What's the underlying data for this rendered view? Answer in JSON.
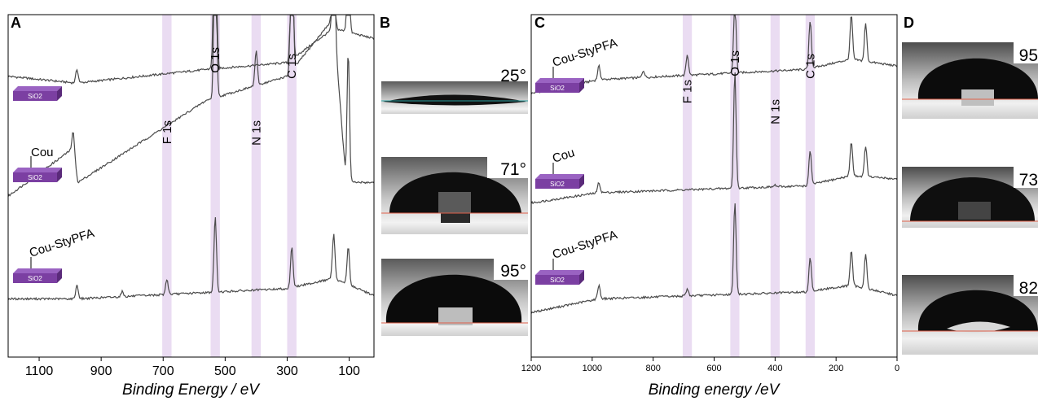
{
  "panel_letters": {
    "a": "A",
    "b": "B",
    "c": "C",
    "d": "D"
  },
  "colors": {
    "trace": "#4a4a4a",
    "band": "#eadcf2",
    "substrate": "#7b3fa2",
    "substrate_dark": "#5a2a7a",
    "baseline": "#e0604a"
  },
  "substrate_label": "SiO2",
  "chart_data": [
    {
      "panel": "A",
      "type": "line",
      "xlabel": "Binding Energy / eV",
      "xlim": [
        1200,
        20
      ],
      "x_reversed": true,
      "x_ticks": [
        "1100",
        "900",
        "700",
        "500",
        "300",
        "100"
      ],
      "x_tick_values": [
        1100,
        900,
        700,
        500,
        300,
        100
      ],
      "peak_bands": [
        {
          "label": "F 1s",
          "center": 688,
          "width": 30
        },
        {
          "label": "O 1s",
          "center": 532,
          "width": 30
        },
        {
          "label": "N 1s",
          "center": 400,
          "width": 30
        },
        {
          "label": "C 1s",
          "center": 285,
          "width": 30
        }
      ],
      "series": [
        {
          "name": "",
          "offset": 0.8,
          "background": [
            [
              1200,
              0.02
            ],
            [
              980,
              0.0
            ],
            [
              560,
              0.04
            ],
            [
              300,
              0.06
            ],
            [
              150,
              0.16
            ],
            [
              20,
              0.13
            ]
          ],
          "peaks": [
            [
              978,
              0.04
            ],
            [
              540,
              0.03
            ],
            [
              532,
              0.82
            ],
            [
              400,
              0.0
            ],
            [
              285,
              0.45
            ],
            [
              150,
              0.28
            ],
            [
              103,
              0.26
            ]
          ]
        },
        {
          "name": "Cou",
          "offset": 0.47,
          "background": [
            [
              1200,
              0.0
            ],
            [
              990,
              0.14
            ],
            [
              975,
              0.04
            ],
            [
              560,
              0.28
            ],
            [
              300,
              0.35
            ],
            [
              150,
              0.52
            ],
            [
              110,
              0.04
            ],
            [
              20,
              0.04
            ]
          ],
          "peaks": [
            [
              990,
              0.05
            ],
            [
              532,
              0.62
            ],
            [
              400,
              0.1
            ],
            [
              285,
              0.55
            ],
            [
              150,
              0.42
            ],
            [
              103,
              0.38
            ]
          ]
        },
        {
          "name": "Cou-StyPFA",
          "offset": 0.14,
          "background": [
            [
              1200,
              0.03
            ],
            [
              980,
              0.03
            ],
            [
              300,
              0.06
            ],
            [
              150,
              0.09
            ],
            [
              20,
              0.04
            ]
          ],
          "peaks": [
            [
              978,
              0.04
            ],
            [
              832,
              0.015
            ],
            [
              688,
              0.045
            ],
            [
              532,
              0.22
            ],
            [
              285,
              0.12
            ],
            [
              150,
              0.13
            ],
            [
              103,
              0.11
            ]
          ]
        }
      ],
      "sample_labels": [
        "",
        "Cou",
        "Cou-StyPFA"
      ]
    },
    {
      "panel": "C",
      "type": "line",
      "xlabel": "Binding energy /eV",
      "xlim": [
        1200,
        0
      ],
      "x_reversed": true,
      "x_ticks": [
        "1200",
        "1000",
        "800",
        "600",
        "400",
        "200",
        "0"
      ],
      "x_tick_values": [
        1200,
        1000,
        800,
        600,
        400,
        200,
        0
      ],
      "peak_bands": [
        {
          "label": "F 1s",
          "center": 688,
          "width": 30
        },
        {
          "label": "O 1s",
          "center": 532,
          "width": 30
        },
        {
          "label": "N 1s",
          "center": 400,
          "width": 30
        },
        {
          "label": "C 1s",
          "center": 285,
          "width": 30
        }
      ],
      "series": [
        {
          "name": "Cou-StyPFA",
          "offset": 0.77,
          "background": [
            [
              1200,
              0.0
            ],
            [
              980,
              0.04
            ],
            [
              300,
              0.07
            ],
            [
              150,
              0.1
            ],
            [
              0,
              0.08
            ]
          ],
          "peaks": [
            [
              978,
              0.04
            ],
            [
              832,
              0.02
            ],
            [
              688,
              0.06
            ],
            [
              532,
              0.22
            ],
            [
              285,
              0.14
            ],
            [
              150,
              0.13
            ],
            [
              103,
              0.11
            ]
          ]
        },
        {
          "name": "Cou",
          "offset": 0.45,
          "background": [
            [
              1200,
              0.0
            ],
            [
              980,
              0.03
            ],
            [
              300,
              0.05
            ],
            [
              150,
              0.08
            ],
            [
              0,
              0.07
            ]
          ],
          "peaks": [
            [
              978,
              0.03
            ],
            [
              532,
              0.34
            ],
            [
              400,
              0.005
            ],
            [
              285,
              0.1
            ],
            [
              150,
              0.1
            ],
            [
              103,
              0.09
            ]
          ]
        },
        {
          "name": "Cou-StyPFA",
          "offset": 0.13,
          "background": [
            [
              1200,
              0.0
            ],
            [
              980,
              0.04
            ],
            [
              300,
              0.06
            ],
            [
              150,
              0.08
            ],
            [
              0,
              0.05
            ]
          ],
          "peaks": [
            [
              978,
              0.04
            ],
            [
              688,
              0.02
            ],
            [
              532,
              0.27
            ],
            [
              285,
              0.1
            ],
            [
              150,
              0.1
            ],
            [
              103,
              0.1
            ]
          ]
        }
      ],
      "sample_labels": [
        "Cou-StyPFA",
        "Cou",
        "Cou-StyPFA"
      ]
    }
  ],
  "contact_angles_b": [
    "25°",
    "71°",
    "95°"
  ],
  "contact_angles_d": [
    "95",
    "73",
    "82"
  ]
}
